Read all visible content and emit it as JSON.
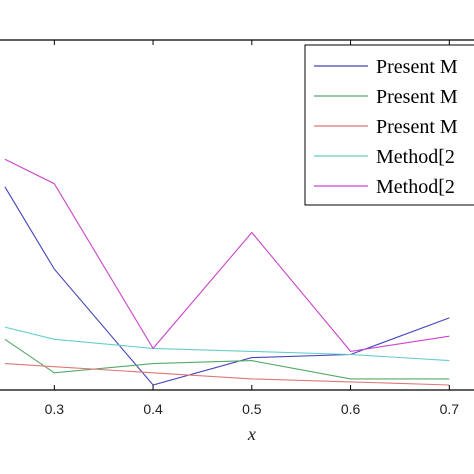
{
  "chart_data": {
    "type": "line",
    "xlabel": "x",
    "ylabel": "",
    "title": "",
    "xlim": [
      0.245,
      0.725
    ],
    "ylim": [
      0,
      1
    ],
    "x_ticks": [
      0.3,
      0.4,
      0.5,
      0.6,
      0.7
    ],
    "x_tick_labels": [
      "0.3",
      "0.4",
      "0.5",
      "0.6",
      "0.7"
    ],
    "grid": false,
    "legend_position": "top-right",
    "x": [
      0.25,
      0.3,
      0.4,
      0.5,
      0.6,
      0.7
    ],
    "series": [
      {
        "name": "Present M",
        "color": "#4444bb",
        "values": [
          0.65,
          0.38,
          0.0,
          0.09,
          0.1,
          0.22
        ]
      },
      {
        "name": "Present M",
        "color": "#55aa66",
        "values": [
          0.15,
          0.04,
          0.07,
          0.08,
          0.02,
          0.02
        ]
      },
      {
        "name": "Present M",
        "color": "#dd7777",
        "values": [
          0.07,
          0.06,
          0.04,
          0.02,
          0.01,
          0.0
        ]
      },
      {
        "name": "Method[2",
        "color": "#66cccc",
        "values": [
          0.19,
          0.15,
          0.12,
          0.11,
          0.1,
          0.08
        ]
      },
      {
        "name": "Method[2",
        "color": "#cc44cc",
        "values": [
          0.74,
          0.66,
          0.12,
          0.5,
          0.11,
          0.16
        ]
      }
    ]
  }
}
